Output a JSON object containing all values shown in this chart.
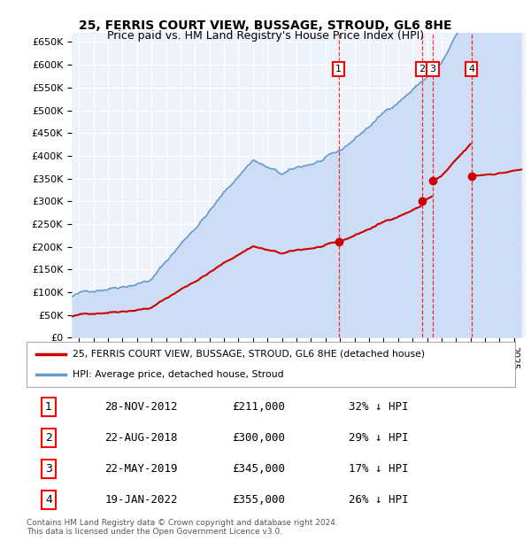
{
  "title": "25, FERRIS COURT VIEW, BUSSAGE, STROUD, GL6 8HE",
  "subtitle": "Price paid vs. HM Land Registry's House Price Index (HPI)",
  "ylim": [
    0,
    670000
  ],
  "yticks": [
    0,
    50000,
    100000,
    150000,
    200000,
    250000,
    300000,
    350000,
    400000,
    450000,
    500000,
    550000,
    600000,
    650000
  ],
  "ytick_labels": [
    "£0",
    "£50K",
    "£100K",
    "£150K",
    "£200K",
    "£250K",
    "£300K",
    "£350K",
    "£400K",
    "£450K",
    "£500K",
    "£550K",
    "£600K",
    "£650K"
  ],
  "sale_color": "#cc0000",
  "hpi_color": "#6699cc",
  "hpi_fill_color": "#ccddf5",
  "background_color": "#eef2fa",
  "sale_dates_num": [
    2012.91,
    2018.64,
    2019.39,
    2022.05
  ],
  "sale_prices": [
    211000,
    300000,
    345000,
    355000
  ],
  "sale_labels": [
    "1",
    "2",
    "3",
    "4"
  ],
  "table_entries": [
    {
      "num": "1",
      "date": "28-NOV-2012",
      "price": "£211,000",
      "hpi": "32% ↓ HPI"
    },
    {
      "num": "2",
      "date": "22-AUG-2018",
      "price": "£300,000",
      "hpi": "29% ↓ HPI"
    },
    {
      "num": "3",
      "date": "22-MAY-2019",
      "price": "£345,000",
      "hpi": "17% ↓ HPI"
    },
    {
      "num": "4",
      "date": "19-JAN-2022",
      "price": "£355,000",
      "hpi": "26% ↓ HPI"
    }
  ],
  "legend_sale_label": "25, FERRIS COURT VIEW, BUSSAGE, STROUD, GL6 8HE (detached house)",
  "legend_hpi_label": "HPI: Average price, detached house, Stroud",
  "footer": "Contains HM Land Registry data © Crown copyright and database right 2024.\nThis data is licensed under the Open Government Licence v3.0.",
  "xlim_min": 1994.5,
  "xlim_max": 2025.8
}
